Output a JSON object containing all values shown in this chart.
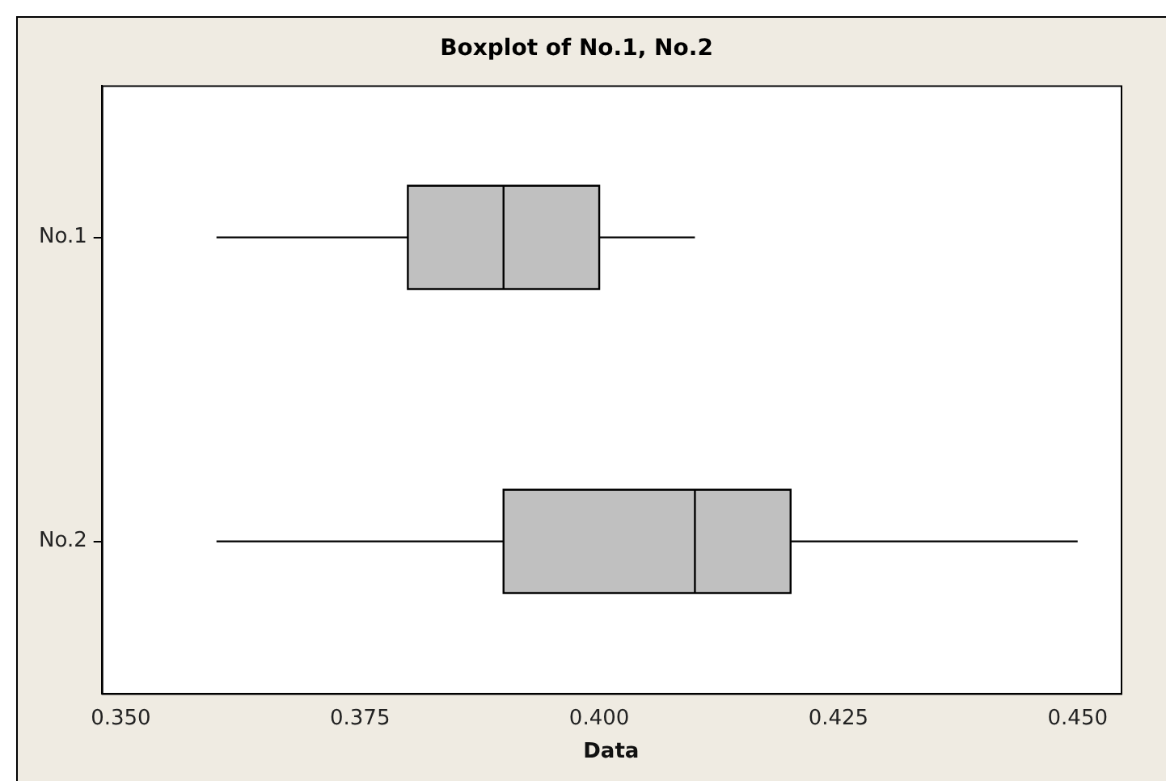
{
  "chart_data": {
    "type": "box",
    "title": "Boxplot of No.1, No.2",
    "xlabel": "Data",
    "orientation": "horizontal",
    "categories": [
      "No.1",
      "No.2"
    ],
    "boxes": [
      {
        "low": 0.36,
        "q1": 0.38,
        "median": 0.39,
        "q3": 0.4,
        "high": 0.41
      },
      {
        "low": 0.36,
        "q1": 0.39,
        "median": 0.41,
        "q3": 0.42,
        "high": 0.45
      }
    ],
    "color": "#c0c0c0",
    "xlim": [
      0.348,
      0.4545
    ],
    "xticks": [
      {
        "value": 0.35,
        "label": "0.350"
      },
      {
        "value": 0.375,
        "label": "0.375"
      },
      {
        "value": 0.4,
        "label": "0.400"
      },
      {
        "value": 0.425,
        "label": "0.425"
      },
      {
        "value": 0.45,
        "label": "0.450"
      }
    ],
    "grid": false,
    "legend": false
  }
}
